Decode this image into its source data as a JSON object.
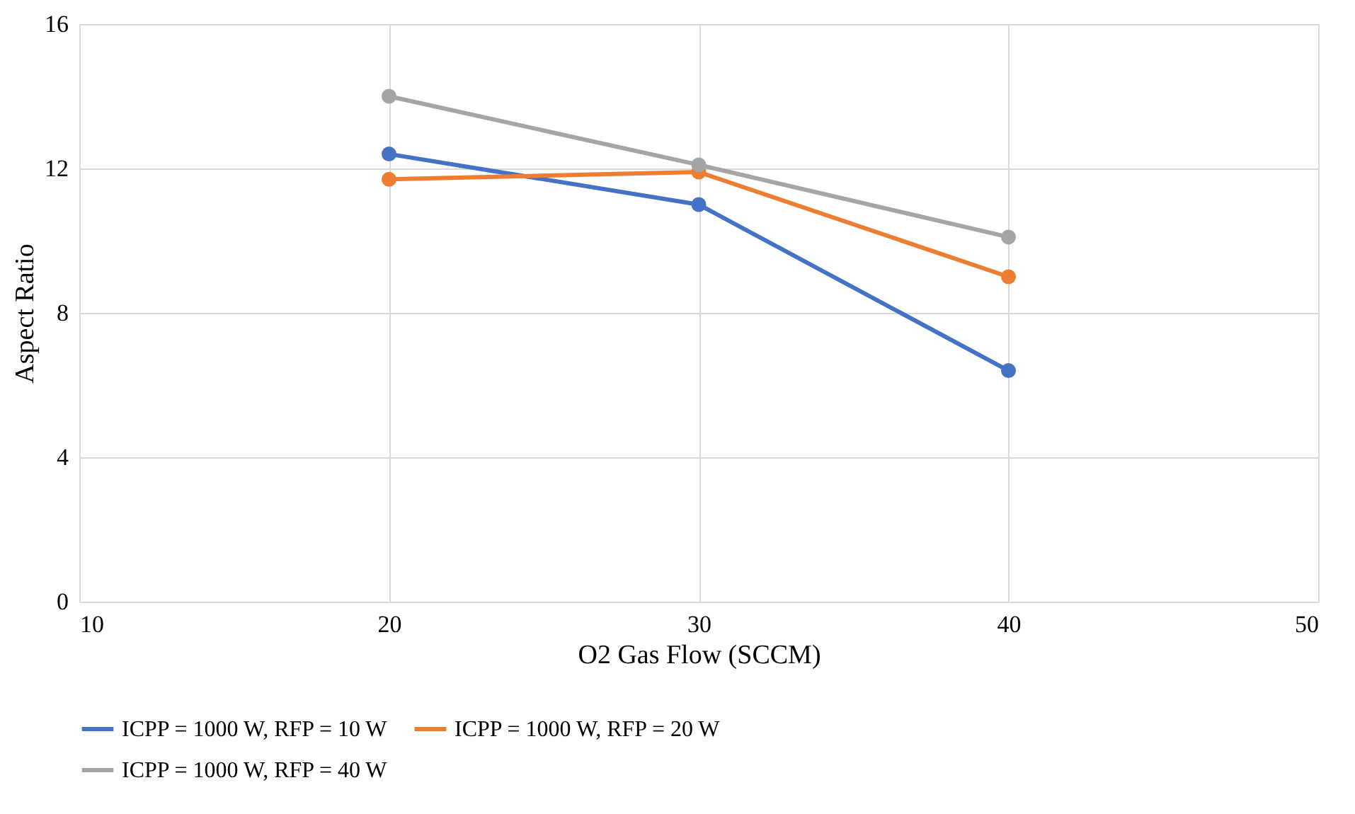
{
  "chart_data": {
    "type": "line",
    "xlabel": "O2 Gas Flow (SCCM)",
    "ylabel": "Aspect Ratio",
    "x": [
      20,
      30,
      40
    ],
    "series": [
      {
        "name": "ICPP = 1000 W, RFP = 10 W",
        "color": "#4472c4",
        "values": [
          12.4,
          11.0,
          6.4
        ]
      },
      {
        "name": "ICPP = 1000 W, RFP = 20 W",
        "color": "#ed7d31",
        "values": [
          11.7,
          11.9,
          9.0
        ]
      },
      {
        "name": "ICPP = 1000 W, RFP = 40 W",
        "color": "#a5a5a5",
        "values": [
          14.0,
          12.1,
          10.1
        ]
      }
    ],
    "xlim": [
      10,
      50
    ],
    "xticks": [
      10,
      20,
      30,
      40,
      50
    ],
    "ylim": [
      0,
      16
    ],
    "yticks": [
      0,
      4,
      8,
      12,
      16
    ],
    "grid": true,
    "legend": "bottom",
    "marker": "circle",
    "line_style": "solid"
  }
}
